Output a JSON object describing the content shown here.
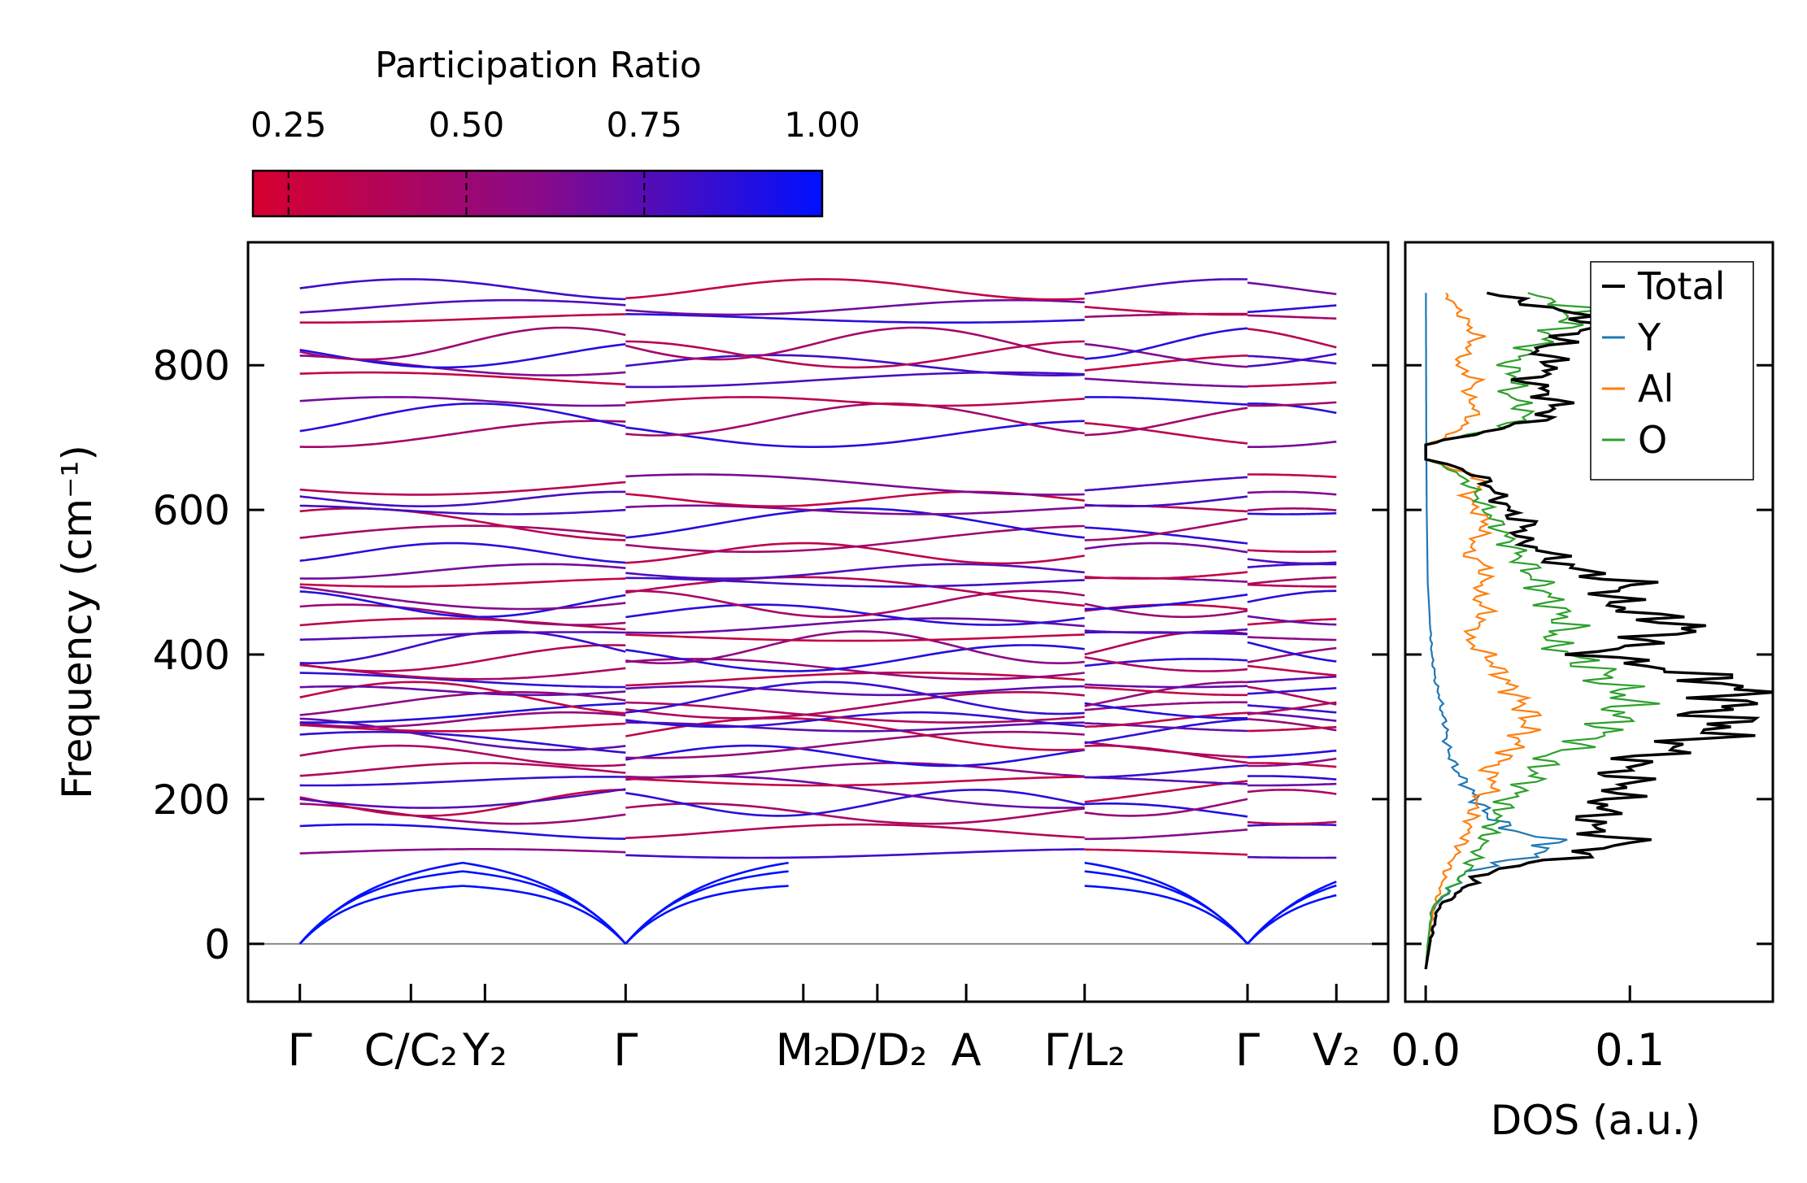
{
  "colorbar": {
    "label": "Participation Ratio",
    "ticks": [
      0.25,
      0.5,
      0.75,
      1.0
    ],
    "tick_labels": [
      "0.25",
      "0.50",
      "0.75",
      "1.00"
    ],
    "range": [
      0.2,
      1.0
    ],
    "color_low": "#d6002f",
    "color_mid": "#8a0a88",
    "color_high": "#0010ff"
  },
  "chart_data": [
    {
      "type": "line",
      "name": "phonon-band-structure",
      "ylabel": "Frequency (cm⁻¹)",
      "ylim": [
        -80,
        970
      ],
      "yticks": [
        0,
        200,
        400,
        600,
        800
      ],
      "x_ticks": [
        {
          "label": "Γ",
          "pos": 0.0
        },
        {
          "label": "C/C₂",
          "pos": 0.75
        },
        {
          "label": "Y₂",
          "pos": 1.25
        },
        {
          "label": "Γ",
          "pos": 2.2
        },
        {
          "label": "M₂",
          "pos": 3.4
        },
        {
          "label": "D/D₂",
          "pos": 3.9
        },
        {
          "label": "A",
          "pos": 4.5
        },
        {
          "label": "Γ/L₂",
          "pos": 5.3
        },
        {
          "label": "Γ",
          "pos": 6.4
        },
        {
          "label": "V₂",
          "pos": 7.0
        }
      ],
      "xlim": [
        -0.35,
        7.35
      ],
      "breaks": [
        2.2,
        5.3,
        6.4
      ],
      "optical_branch_frequencies": [
        125,
        155,
        180,
        195,
        210,
        225,
        240,
        260,
        275,
        290,
        300,
        310,
        320,
        330,
        340,
        350,
        365,
        380,
        395,
        410,
        425,
        440,
        455,
        470,
        485,
        500,
        515,
        540,
        560,
        580,
        600,
        615,
        635,
        705,
        725,
        750,
        780,
        800,
        815,
        830,
        865,
        880,
        905
      ],
      "acoustic_plateaus": [
        85,
        110,
        130
      ],
      "zero_line": 0
    },
    {
      "type": "line",
      "name": "density-of-states",
      "xlabel": "DOS (a.u.)",
      "xlim": [
        -0.01,
        0.17
      ],
      "xticks": [
        0.0,
        0.1
      ],
      "xtick_labels": [
        "0.0",
        "0.1"
      ],
      "ylim": [
        -80,
        970
      ],
      "legend": "top-right",
      "series": [
        {
          "name": "Total",
          "color": "#000000",
          "y": [
            -35,
            0,
            50,
            100,
            120,
            140,
            160,
            180,
            200,
            220,
            240,
            260,
            280,
            300,
            320,
            340,
            360,
            380,
            400,
            420,
            440,
            460,
            480,
            500,
            520,
            540,
            560,
            580,
            600,
            620,
            640,
            660,
            670,
            690,
            700,
            720,
            740,
            760,
            780,
            800,
            820,
            840,
            860,
            880,
            900
          ],
          "x": [
            0.0,
            0.002,
            0.006,
            0.03,
            0.07,
            0.1,
            0.08,
            0.085,
            0.09,
            0.1,
            0.095,
            0.11,
            0.13,
            0.15,
            0.14,
            0.155,
            0.15,
            0.12,
            0.08,
            0.11,
            0.13,
            0.1,
            0.09,
            0.1,
            0.07,
            0.06,
            0.045,
            0.05,
            0.04,
            0.035,
            0.03,
            0.015,
            0.0,
            0.0,
            0.015,
            0.05,
            0.065,
            0.06,
            0.05,
            0.065,
            0.055,
            0.07,
            0.085,
            0.06,
            0.03
          ]
        },
        {
          "name": "Y",
          "color": "#1f77b4",
          "y": [
            -35,
            0,
            50,
            100,
            120,
            140,
            160,
            180,
            200,
            220,
            240,
            260,
            280,
            300,
            320,
            340,
            360,
            380,
            400,
            450,
            500,
            600,
            700,
            800,
            900
          ],
          "x": [
            0.0,
            0.001,
            0.004,
            0.02,
            0.05,
            0.065,
            0.04,
            0.03,
            0.025,
            0.02,
            0.015,
            0.012,
            0.01,
            0.01,
            0.008,
            0.007,
            0.005,
            0.004,
            0.003,
            0.002,
            0.001,
            0.0005,
            0.0003,
            0.0002,
            0.0001
          ]
        },
        {
          "name": "Al",
          "color": "#ff7f0e",
          "y": [
            -35,
            0,
            50,
            100,
            150,
            200,
            220,
            240,
            260,
            280,
            300,
            320,
            340,
            360,
            380,
            400,
            420,
            440,
            460,
            480,
            500,
            520,
            540,
            560,
            580,
            600,
            620,
            640,
            660,
            670,
            690,
            700,
            720,
            740,
            760,
            780,
            800,
            820,
            840,
            860,
            880,
            900
          ],
          "x": [
            0.0,
            0.001,
            0.004,
            0.01,
            0.02,
            0.025,
            0.035,
            0.03,
            0.04,
            0.045,
            0.05,
            0.05,
            0.045,
            0.04,
            0.035,
            0.03,
            0.02,
            0.025,
            0.03,
            0.025,
            0.028,
            0.03,
            0.02,
            0.025,
            0.03,
            0.025,
            0.02,
            0.03,
            0.01,
            0.0,
            0.0,
            0.01,
            0.02,
            0.025,
            0.02,
            0.025,
            0.015,
            0.02,
            0.025,
            0.02,
            0.015,
            0.01
          ]
        },
        {
          "name": "O",
          "color": "#2ca02c",
          "y": [
            -35,
            0,
            50,
            100,
            150,
            200,
            220,
            240,
            260,
            280,
            300,
            320,
            340,
            360,
            380,
            400,
            420,
            440,
            460,
            480,
            500,
            520,
            540,
            560,
            580,
            600,
            620,
            640,
            660,
            670,
            690,
            700,
            720,
            740,
            760,
            780,
            800,
            820,
            840,
            860,
            880,
            900
          ],
          "x": [
            0.0,
            0.001,
            0.003,
            0.02,
            0.03,
            0.04,
            0.05,
            0.055,
            0.06,
            0.08,
            0.09,
            0.095,
            0.1,
            0.09,
            0.085,
            0.07,
            0.06,
            0.07,
            0.065,
            0.06,
            0.055,
            0.05,
            0.045,
            0.04,
            0.035,
            0.03,
            0.025,
            0.02,
            0.01,
            0.0,
            0.0,
            0.015,
            0.045,
            0.05,
            0.04,
            0.045,
            0.04,
            0.05,
            0.06,
            0.07,
            0.075,
            0.05
          ]
        }
      ]
    }
  ]
}
